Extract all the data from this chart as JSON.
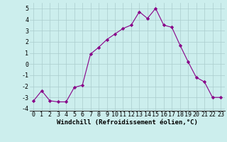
{
  "x": [
    0,
    1,
    2,
    3,
    4,
    5,
    6,
    7,
    8,
    9,
    10,
    11,
    12,
    13,
    14,
    15,
    16,
    17,
    18,
    19,
    20,
    21,
    22,
    23
  ],
  "y": [
    -3.3,
    -2.4,
    -3.3,
    -3.4,
    -3.4,
    -2.1,
    -1.9,
    0.9,
    1.5,
    2.2,
    2.7,
    3.2,
    3.5,
    4.7,
    4.1,
    5.0,
    3.5,
    3.3,
    1.7,
    0.2,
    -1.2,
    -1.6,
    -3.0,
    -3.0
  ],
  "line_color": "#880088",
  "marker": "D",
  "marker_size": 2.2,
  "bg_color": "#cceeed",
  "grid_color": "#aacccc",
  "xlabel": "Windchill (Refroidissement éolien,°C)",
  "xlabel_fontsize": 6.5,
  "tick_fontsize": 6,
  "ytick_fontsize": 6,
  "ylim": [
    -4.2,
    5.5
  ],
  "xlim": [
    -0.5,
    23.5
  ],
  "yticks": [
    -4,
    -3,
    -2,
    -1,
    0,
    1,
    2,
    3,
    4,
    5
  ],
  "xticks": [
    0,
    1,
    2,
    3,
    4,
    5,
    6,
    7,
    8,
    9,
    10,
    11,
    12,
    13,
    14,
    15,
    16,
    17,
    18,
    19,
    20,
    21,
    22,
    23
  ],
  "xtick_labels": [
    "0",
    "1",
    "2",
    "3",
    "4",
    "5",
    "6",
    "7",
    "8",
    "9",
    "10",
    "11",
    "12",
    "13",
    "14",
    "15",
    "16",
    "17",
    "18",
    "19",
    "20",
    "21",
    "22",
    "23"
  ]
}
